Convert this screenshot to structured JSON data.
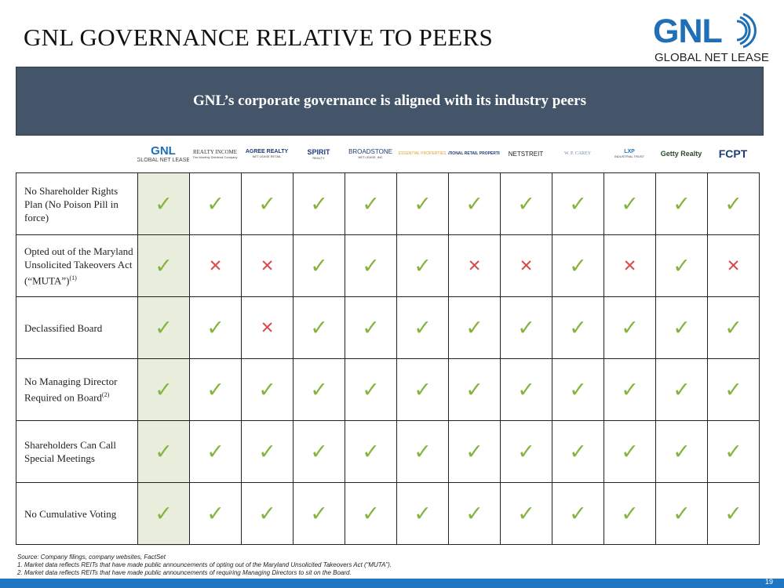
{
  "title": "GNL GOVERNANCE RELATIVE TO PEERS",
  "logo": {
    "name": "GNL",
    "tagline": "GLOBAL NET LEASE",
    "color": "#1e6fb5"
  },
  "banner": {
    "text": "GNL’s corporate governance is aligned with its industry peers"
  },
  "peers": [
    {
      "name": "GNL",
      "sub": "GLOBAL NET LEASE"
    },
    {
      "name": "REALTY INCOME",
      "sub": "The Monthly Dividend Company"
    },
    {
      "name": "AGREE REALTY",
      "sub": "NET LEASE RETAIL"
    },
    {
      "name": "SPIRIT",
      "sub": "REALTY"
    },
    {
      "name": "BROADSTONE",
      "sub": "NET LEASE, INC"
    },
    {
      "name": "ESSENTIAL PROPERTIES",
      "sub": ""
    },
    {
      "name": "NATIONAL RETAIL PROPERTIES",
      "sub": ""
    },
    {
      "name": "NETSTREIT",
      "sub": ""
    },
    {
      "name": "W. P. CAREY",
      "sub": ""
    },
    {
      "name": "LXP",
      "sub": "INDUSTRIAL TRUST"
    },
    {
      "name": "Getty Realty",
      "sub": ""
    },
    {
      "name": "FCPT",
      "sub": ""
    }
  ],
  "rows": [
    {
      "label": "No Shareholder Rights Plan (No Poison Pill in force)",
      "sup": "",
      "values": [
        1,
        1,
        1,
        1,
        1,
        1,
        1,
        1,
        1,
        1,
        1,
        1
      ]
    },
    {
      "label": "Opted out of the Maryland Unsolicited Takeovers Act (“MUTA”)",
      "sup": "(1)",
      "values": [
        1,
        0,
        0,
        1,
        1,
        1,
        0,
        0,
        1,
        0,
        1,
        0
      ]
    },
    {
      "label": "Declassified Board",
      "sup": "",
      "values": [
        1,
        1,
        0,
        1,
        1,
        1,
        1,
        1,
        1,
        1,
        1,
        1
      ]
    },
    {
      "label": "No Managing Director Required on Board",
      "sup": "(2)",
      "values": [
        1,
        1,
        1,
        1,
        1,
        1,
        1,
        1,
        1,
        1,
        1,
        1
      ]
    },
    {
      "label": "Shareholders Can Call Special Meetings",
      "sup": "",
      "values": [
        1,
        1,
        1,
        1,
        1,
        1,
        1,
        1,
        1,
        1,
        1,
        1
      ]
    },
    {
      "label": "No Cumulative Voting",
      "sup": "",
      "values": [
        1,
        1,
        1,
        1,
        1,
        1,
        1,
        1,
        1,
        1,
        1,
        1
      ]
    }
  ],
  "marks": {
    "yes": "✓",
    "no": "✕",
    "yes_color": "#86b23e",
    "no_color": "#d94b4b"
  },
  "footnotes": {
    "source": "Source: Company filings, company websites, FactSet",
    "n1": "1.     Market data reflects REITs that have made public announcements of opting out of the Maryland Unsolicited Takeovers Act (“MUTA”).",
    "n2": "2.     Market data reflects REITs that have made public announcements of requiring Managing Directors to sit on the Board."
  },
  "page_number": "19"
}
